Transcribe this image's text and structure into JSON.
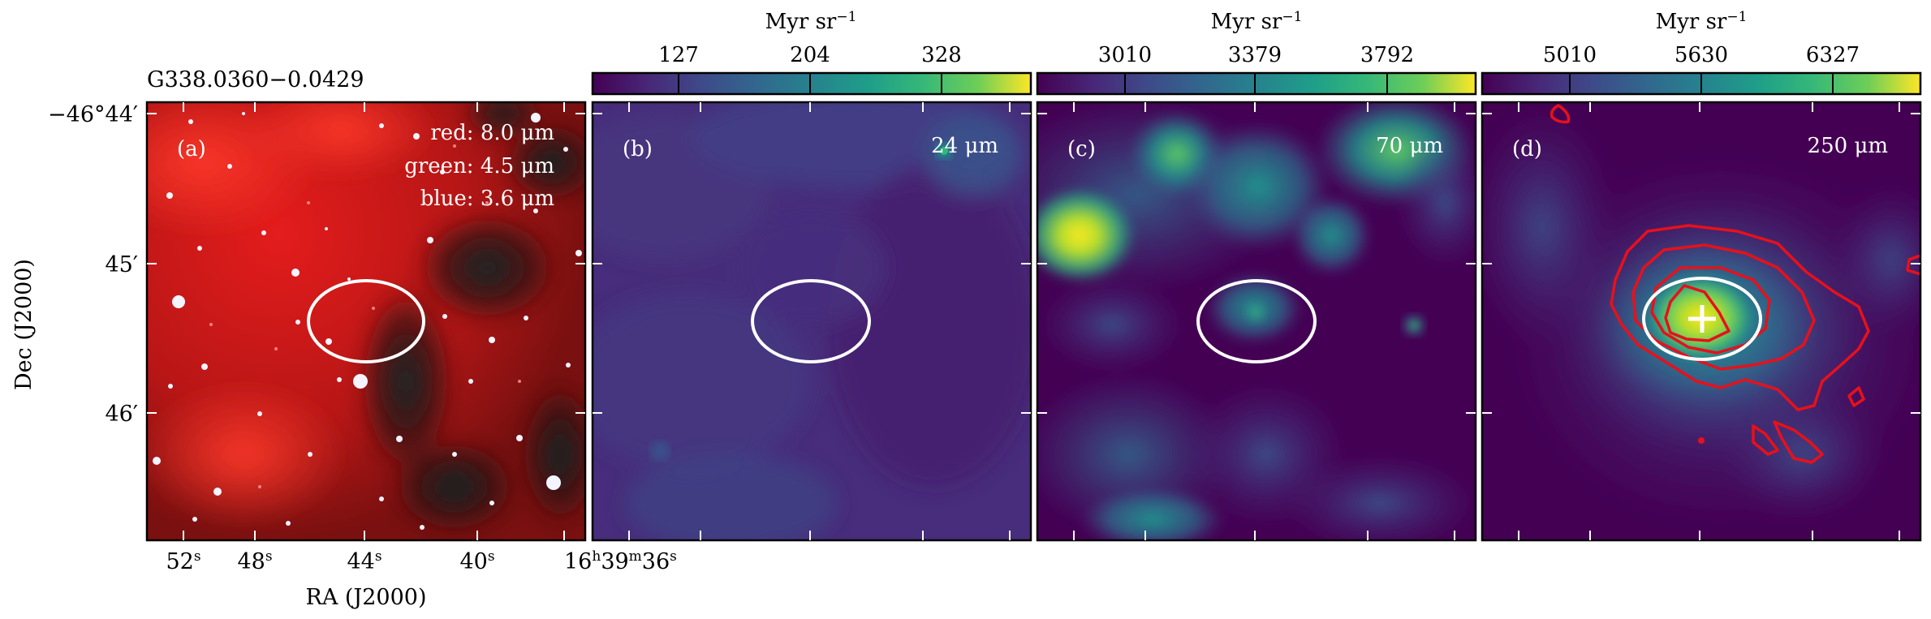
{
  "figure": {
    "source_name": "G338.0360−0.0429",
    "ra_label": "RA (J2000)",
    "dec_label": "Dec (J2000)",
    "ra_ticks": [
      {
        "main": "52",
        "sup": "s"
      },
      {
        "main": "48",
        "sup": "s"
      },
      {
        "main": "44",
        "sup": "s"
      },
      {
        "main": "40",
        "sup": "s"
      },
      {
        "main": "16",
        "sup": "h",
        "main2": "39",
        "sup2": "m",
        "main3": "36",
        "sup3": "s"
      }
    ],
    "dec_ticks": [
      {
        "main": "−46°44′"
      },
      {
        "main": "45′"
      },
      {
        "main": "46′"
      }
    ]
  },
  "panels": [
    {
      "id": "a",
      "tag": "(a)",
      "legend": [
        "red: 8.0 μm",
        "green: 4.5 μm",
        "blue: 3.6 μm"
      ]
    },
    {
      "id": "b",
      "tag": "(b)",
      "wavelength": "24 μm",
      "colorbar": {
        "unit": "Myr sr",
        "unit_exp": "−1",
        "ticks": [
          "127",
          "204",
          "328"
        ]
      }
    },
    {
      "id": "c",
      "tag": "(c)",
      "wavelength": "70 μm",
      "colorbar": {
        "unit": "Myr sr",
        "unit_exp": "−1",
        "ticks": [
          "3010",
          "3379",
          "3792"
        ]
      }
    },
    {
      "id": "d",
      "tag": "(d)",
      "wavelength": "250 μm",
      "colorbar": {
        "unit": "Myr sr",
        "unit_exp": "−1",
        "ticks": [
          "5010",
          "5630",
          "6327"
        ]
      }
    }
  ],
  "colors": {
    "viridis_dark": "#440154",
    "viridis_mid": "#21918c",
    "viridis_light": "#fde725",
    "contour": "#e8101a",
    "ellipse": "#ffffff"
  }
}
